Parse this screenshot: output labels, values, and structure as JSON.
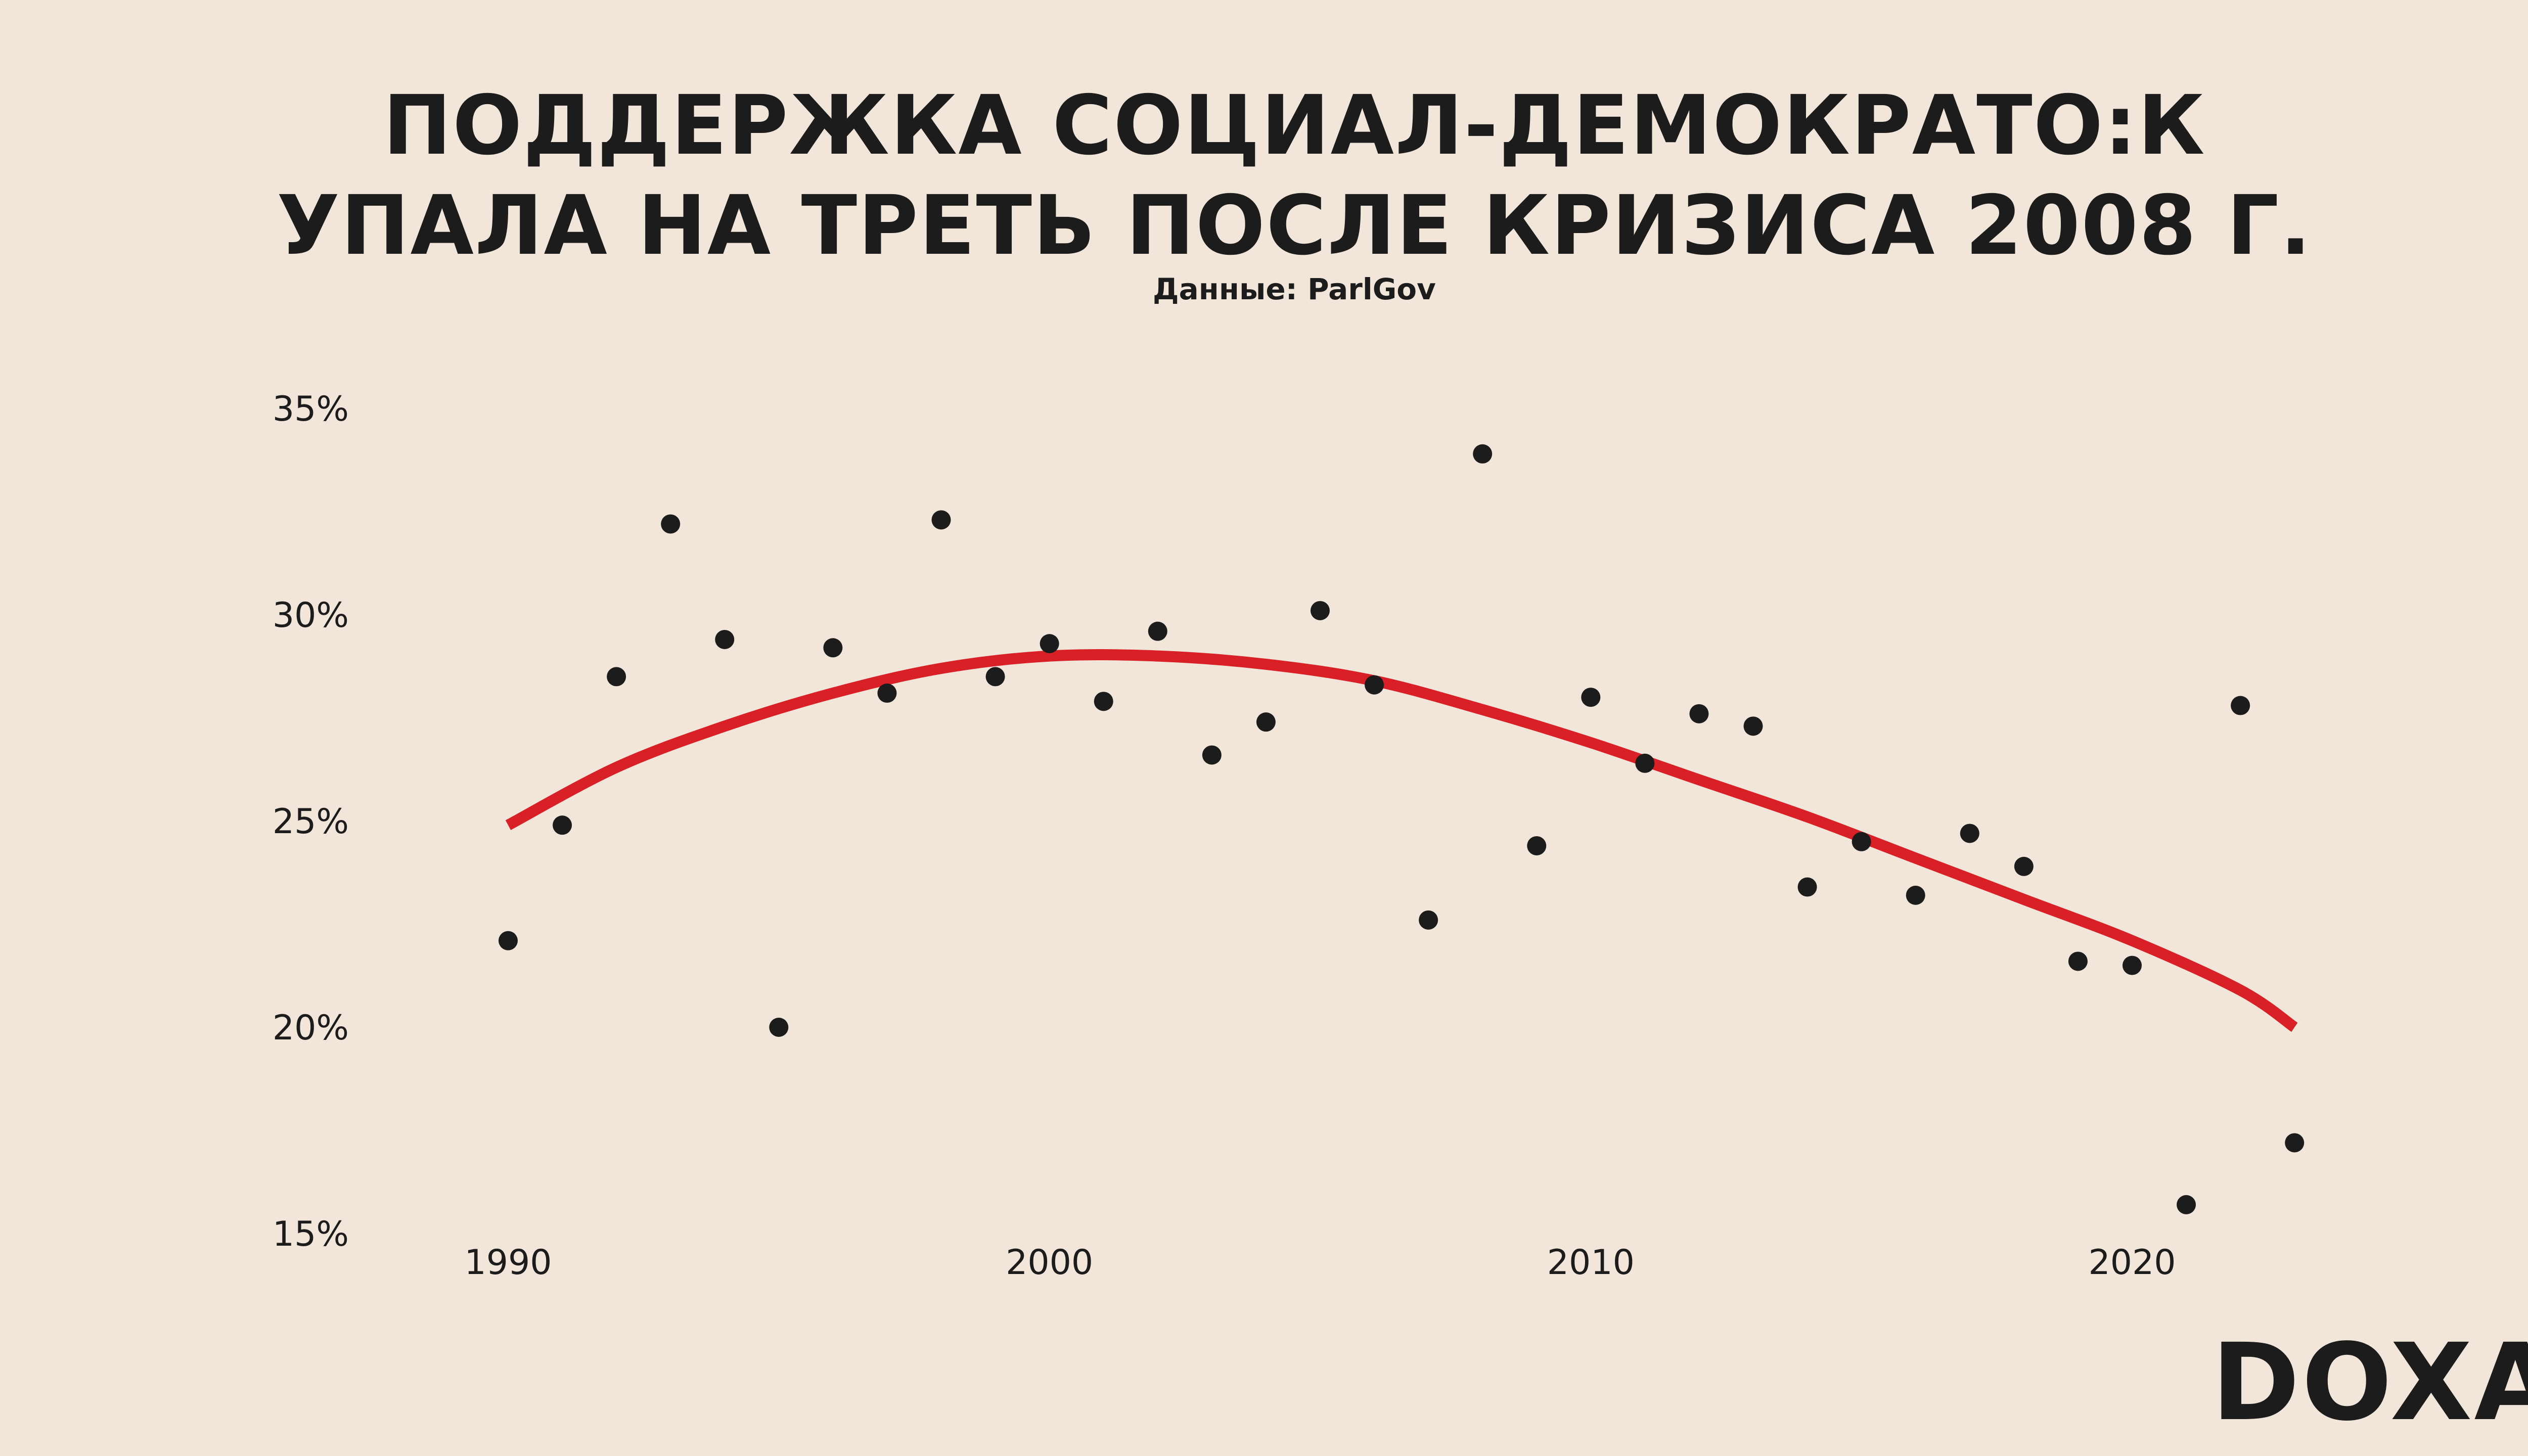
{
  "chart_data": {
    "type": "scatter",
    "title_line1": "ПОДДЕРЖКА СОЦИАЛ-ДЕМОКРАТО:К",
    "title_line2": "УПАЛА НА ТРЕТЬ ПОСЛЕ КРИЗИСА 2008 Г.",
    "subtitle": "Данные: ParlGov",
    "xlabel": "",
    "ylabel": "",
    "xlim": [
      1989.5,
      2024.5
    ],
    "ylim": [
      15,
      35
    ],
    "x_ticks": [
      1990,
      2000,
      2010,
      2020
    ],
    "x_tick_labels": [
      "1990",
      "2000",
      "2010",
      "2020"
    ],
    "y_ticks": [
      15,
      20,
      25,
      30,
      35
    ],
    "y_tick_labels": [
      "15%",
      "20%",
      "25%",
      "30%",
      "35%"
    ],
    "grid": false,
    "colors": {
      "background": "#f2e6db",
      "points": "#1c1c1c",
      "trend": "#d92027",
      "text": "#1c1c1c"
    },
    "points": [
      {
        "x": 1990,
        "y": 22.1
      },
      {
        "x": 1991,
        "y": 24.9
      },
      {
        "x": 1992,
        "y": 28.5
      },
      {
        "x": 1993,
        "y": 32.2
      },
      {
        "x": 1994,
        "y": 29.4
      },
      {
        "x": 1995,
        "y": 20.0
      },
      {
        "x": 1996,
        "y": 29.2
      },
      {
        "x": 1997,
        "y": 28.1
      },
      {
        "x": 1998,
        "y": 32.3
      },
      {
        "x": 1999,
        "y": 28.5
      },
      {
        "x": 2000,
        "y": 29.3
      },
      {
        "x": 2001,
        "y": 27.9
      },
      {
        "x": 2002,
        "y": 29.6
      },
      {
        "x": 2003,
        "y": 26.6
      },
      {
        "x": 2004,
        "y": 27.4
      },
      {
        "x": 2005,
        "y": 30.1
      },
      {
        "x": 2006,
        "y": 28.3
      },
      {
        "x": 2007,
        "y": 22.6
      },
      {
        "x": 2008,
        "y": 33.9
      },
      {
        "x": 2009,
        "y": 24.4
      },
      {
        "x": 2010,
        "y": 28.0
      },
      {
        "x": 2011,
        "y": 26.4
      },
      {
        "x": 2012,
        "y": 27.6
      },
      {
        "x": 2013,
        "y": 27.3
      },
      {
        "x": 2014,
        "y": 23.4
      },
      {
        "x": 2015,
        "y": 24.5
      },
      {
        "x": 2016,
        "y": 23.2
      },
      {
        "x": 2017,
        "y": 24.7
      },
      {
        "x": 2018,
        "y": 23.9
      },
      {
        "x": 2019,
        "y": 21.6
      },
      {
        "x": 2020,
        "y": 21.5
      },
      {
        "x": 2021,
        "y": 15.7
      },
      {
        "x": 2022,
        "y": 27.8
      },
      {
        "x": 2023,
        "y": 17.2
      }
    ],
    "trend_line": [
      {
        "x": 1990,
        "y": 24.9
      },
      {
        "x": 1992,
        "y": 26.3
      },
      {
        "x": 1994,
        "y": 27.3
      },
      {
        "x": 1996,
        "y": 28.1
      },
      {
        "x": 1998,
        "y": 28.7
      },
      {
        "x": 2000,
        "y": 29.0
      },
      {
        "x": 2002,
        "y": 29.0
      },
      {
        "x": 2004,
        "y": 28.8
      },
      {
        "x": 2006,
        "y": 28.4
      },
      {
        "x": 2008,
        "y": 27.7
      },
      {
        "x": 2010,
        "y": 26.9
      },
      {
        "x": 2012,
        "y": 26.0
      },
      {
        "x": 2014,
        "y": 25.1
      },
      {
        "x": 2016,
        "y": 24.1
      },
      {
        "x": 2018,
        "y": 23.1
      },
      {
        "x": 2020,
        "y": 22.1
      },
      {
        "x": 2022,
        "y": 20.9
      },
      {
        "x": 2023,
        "y": 20.0
      }
    ]
  },
  "brand": {
    "logo_text": "DOXA"
  }
}
